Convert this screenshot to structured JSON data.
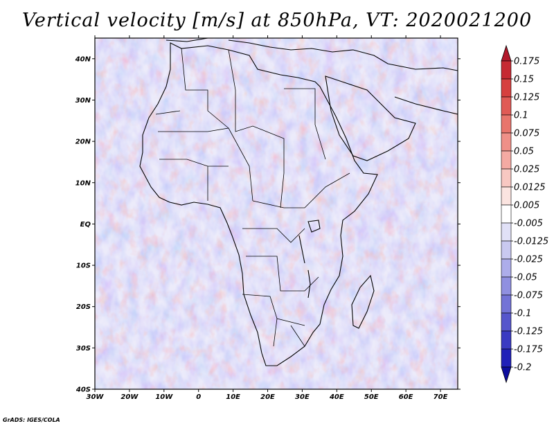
{
  "title": "Vertical velocity [m/s] at 850hPa, VT: 2020021200",
  "credit": "GrADS: IGES/COLA",
  "lat_labels": [
    "40N",
    "30N",
    "20N",
    "10N",
    "EQ",
    "10S",
    "20S",
    "30S",
    "40S"
  ],
  "lon_labels": [
    "30W",
    "20W",
    "10W",
    "0",
    "10E",
    "20E",
    "30E",
    "40E",
    "50E",
    "60E",
    "70E"
  ],
  "colorbar": {
    "levels": [
      "0.175",
      "0.15",
      "0.125",
      "0.1",
      "0.075",
      "0.05",
      "0.025",
      "0.0125",
      "0.005",
      "-0.005",
      "-0.0125",
      "-0.025",
      "-0.05",
      "-0.075",
      "-0.1",
      "-0.125",
      "-0.175",
      "-0.2"
    ],
    "colors": [
      "#b2182b",
      "#c62a33",
      "#d6403f",
      "#e05a55",
      "#e8756c",
      "#ef9088",
      "#f4aaa3",
      "#f8c8c2",
      "#fbe4e0",
      "#ffffff",
      "#e1e1f7",
      "#c9c9f0",
      "#adadea",
      "#9090e0",
      "#7373d6",
      "#5656cc",
      "#3a3ac2",
      "#2020b8",
      "#0d0d9e"
    ]
  },
  "map_extent": {
    "lon_min": -30,
    "lon_max": 75,
    "lat_min": -40,
    "lat_max": 45
  }
}
